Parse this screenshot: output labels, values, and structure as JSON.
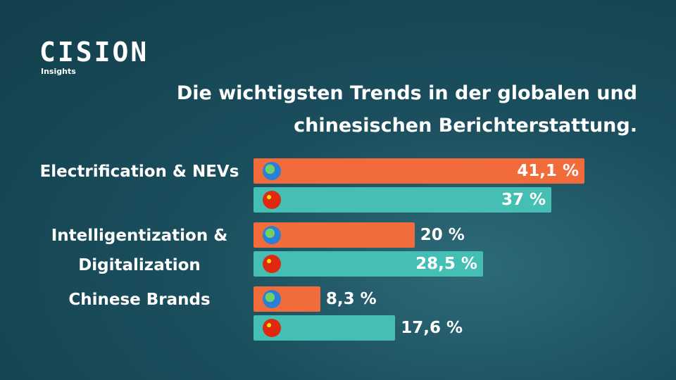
{
  "logo": {
    "name": "CISION",
    "sub": "Insights"
  },
  "chart_data": {
    "type": "bar",
    "orientation": "horizontal",
    "title": "Die wichtigsten Trends in der globalen und chinesischen Berichterstattung.",
    "categories": [
      "Electrification & NEVs",
      "Intelligentization & Digitalization",
      "Chinese Brands"
    ],
    "series": [
      {
        "color": "#f26b3a",
        "values": [
          41.1,
          20,
          8.3
        ],
        "value_labels": [
          "41,1 %",
          "20 %",
          "8,3 %"
        ]
      },
      {
        "color": "#45bfb4",
        "values": [
          37,
          28.5,
          17.6
        ],
        "value_labels": [
          "37 %",
          "28,5 %",
          "17,6 %"
        ]
      }
    ]
  }
}
